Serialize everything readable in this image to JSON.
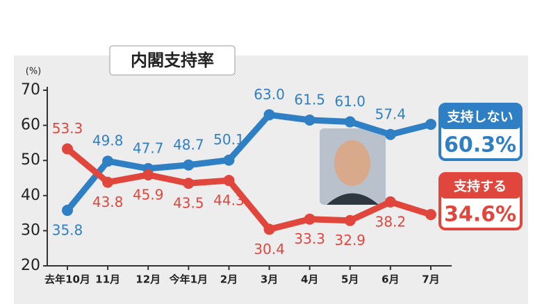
{
  "chart_data": {
    "type": "line",
    "title": "内閣支持率",
    "y_label": "(%)",
    "categories": [
      "去年10月",
      "11月",
      "12月",
      "今年1月",
      "2月",
      "3月",
      "4月",
      "5月",
      "6月",
      "7月"
    ],
    "series": [
      {
        "name": "支持しない",
        "color": "#2f7fc4",
        "values": [
          35.8,
          49.8,
          47.7,
          48.7,
          50.1,
          63.0,
          61.5,
          61.0,
          57.4,
          60.3
        ],
        "value_labels": [
          "35.8",
          "49.8",
          "47.7",
          "48.7",
          "50.1",
          "63.0",
          "61.5",
          "61.0",
          "57.4",
          "60.3%"
        ]
      },
      {
        "name": "支持する",
        "color": "#e0463c",
        "values": [
          53.3,
          43.8,
          45.9,
          43.5,
          44.3,
          30.4,
          33.3,
          32.9,
          38.2,
          34.6
        ],
        "value_labels": [
          "53.3",
          "43.8",
          "45.9",
          "43.5",
          "44.3",
          "30.4",
          "33.3",
          "32.9",
          "38.2",
          "34.6%"
        ]
      }
    ],
    "ylim": [
      20,
      70
    ],
    "yticks": [
      20,
      30,
      40,
      50,
      60,
      70
    ],
    "legend": "right"
  }
}
